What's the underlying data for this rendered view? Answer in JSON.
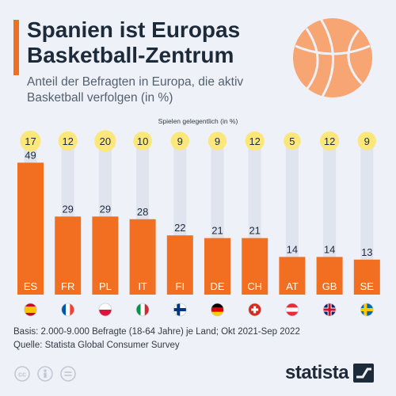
{
  "header": {
    "title": "Spanien ist Europas Basketball-Zentrum",
    "subtitle": "Anteil der Befragten in Europa, die aktiv Basketball verfolgen (in %)"
  },
  "colors": {
    "accent": "#f26f21",
    "bubble": "#fbe77a",
    "track": "#dfe4ef",
    "text": "#1d2a3a"
  },
  "chart_data": {
    "type": "bar",
    "categories": [
      "ES",
      "FR",
      "PL",
      "IT",
      "FI",
      "DE",
      "CH",
      "AT",
      "GB",
      "SE"
    ],
    "series": [
      {
        "values": [
          49,
          29,
          29,
          28,
          22,
          21,
          21,
          14,
          14,
          13
        ]
      },
      {
        "name": "Spielen gelegentlich (in %)",
        "values": [
          17,
          12,
          20,
          10,
          9,
          9,
          12,
          5,
          12,
          9
        ]
      }
    ],
    "flags": [
      "spain-flag-icon",
      "france-flag-icon",
      "poland-flag-icon",
      "italy-flag-icon",
      "finland-flag-icon",
      "germany-flag-icon",
      "switzerland-flag-icon",
      "austria-flag-icon",
      "uk-flag-icon",
      "sweden-flag-icon"
    ],
    "ylim": [
      0,
      55
    ]
  },
  "footer": {
    "basis": "Basis: 2.000-9.000 Befragte (18-64 Jahre) je Land; Okt 2021-Sep 2022",
    "source": "Quelle: Statista Global Consumer Survey",
    "logo": "statista"
  }
}
